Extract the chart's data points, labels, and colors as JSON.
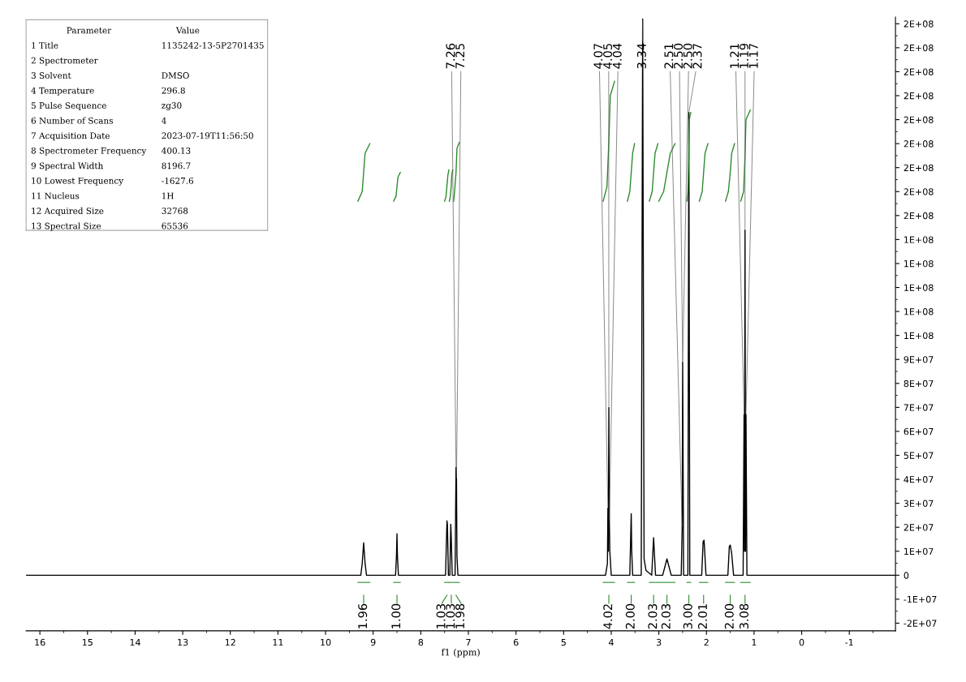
{
  "chart_data": {
    "type": "line",
    "xlabel": "f1 (ppm)",
    "xlim": [
      16.29,
      -1.97
    ],
    "xticks": [
      16,
      15,
      14,
      13,
      12,
      11,
      10,
      9,
      8,
      7,
      6,
      5,
      4,
      3,
      2,
      1,
      0,
      -1
    ],
    "ylim": [
      -23200000.0,
      232800000.0
    ],
    "yticks": [
      {
        "value": -20000000.0,
        "label": "-2E+07"
      },
      {
        "value": -10000000.0,
        "label": "-1E+07"
      },
      0,
      {
        "value": 10000000.0,
        "label": "1E+07"
      },
      {
        "value": 20000000.0,
        "label": "2E+07"
      },
      {
        "value": 30000000.0,
        "label": "3E+07"
      },
      {
        "value": 40000000.0,
        "label": "4E+07"
      },
      {
        "value": 50000000.0,
        "label": "5E+07"
      },
      {
        "value": 60000000.0,
        "label": "6E+07"
      },
      {
        "value": 70000000.0,
        "label": "7E+07"
      },
      {
        "value": 80000000.0,
        "label": "8E+07"
      },
      {
        "value": 90000000.0,
        "label": "9E+07"
      },
      {
        "value": 100000000.0,
        "label": "1E+08"
      },
      {
        "value": 110000000.0,
        "label": "1E+08"
      },
      {
        "value": 120000000.0,
        "label": "1E+08"
      },
      {
        "value": 130000000.0,
        "label": "1E+08"
      },
      {
        "value": 140000000.0,
        "label": "1E+08"
      },
      {
        "value": 150000000.0,
        "label": "2E+08"
      },
      {
        "value": 160000000.0,
        "label": "2E+08"
      },
      {
        "value": 170000000.0,
        "label": "2E+08"
      },
      {
        "value": 180000000.0,
        "label": "2E+08"
      },
      {
        "value": 190000000.0,
        "label": "2E+08"
      },
      {
        "value": 200000000.0,
        "label": "2E+08"
      },
      {
        "value": 210000000.0,
        "label": "2E+08"
      },
      {
        "value": 220000000.0,
        "label": "2E+08"
      },
      {
        "value": 230000000.0,
        "label": "2E+08"
      }
    ],
    "grid": false,
    "legend": "bottom",
    "series": [
      {
        "color": "#000000",
        "x": [
          16.29,
          9.26,
          9.23,
          9.2,
          9.17,
          9.14,
          8.53,
          8.51,
          8.5,
          8.49,
          8.47,
          7.48,
          7.45,
          7.44,
          7.42,
          7.39,
          7.37,
          7.36,
          7.34,
          7.28,
          7.26,
          7.25,
          7.24,
          7.22,
          4.12,
          4.08,
          4.07,
          4.06,
          4.05,
          4.04,
          4.03,
          4.0,
          3.61,
          3.58,
          3.57,
          3.55,
          3.37,
          3.34,
          3.31,
          3.27,
          3.15,
          3.11,
          3.07,
          2.92,
          2.83,
          2.74,
          2.53,
          2.51,
          2.5,
          2.48,
          2.39,
          2.37,
          2.35,
          2.1,
          2.07,
          2.05,
          2.01,
          1.55,
          1.52,
          1.5,
          1.47,
          1.43,
          1.23,
          1.21,
          1.2,
          1.19,
          1.18,
          1.17,
          1.15,
          -1.97
        ],
        "values": [
          0,
          0,
          5000000.0,
          13500000.0,
          5000000.0,
          0,
          0,
          8500000.0,
          17300000.0,
          8000000.0,
          0,
          0,
          22700000.0,
          21000000.0,
          0,
          0,
          21300000.0,
          16000000.0,
          0,
          0,
          45000000.0,
          40000000.0,
          8000000.0,
          0,
          0,
          5000000.0,
          28000000.0,
          10000000.0,
          70000000.0,
          23000000.0,
          10000000.0,
          0,
          0,
          25700000.0,
          10000000.0,
          0,
          0,
          232000000.0,
          6800000.0,
          2000000.0,
          0,
          15700000.0,
          0,
          0,
          6800000.0,
          0,
          0,
          20000000.0,
          89000000.0,
          0,
          0,
          193000000.0,
          0,
          0,
          14000000.0,
          14600000.0,
          0,
          0,
          12000000.0,
          12600000.0,
          9000000.0,
          0,
          0,
          67000000.0,
          10000000.0,
          144000000.0,
          10000000.0,
          67000000.0,
          0,
          0
        ]
      },
      {
        "name": "1.96",
        "color": "#2e8b2e",
        "x": [
          9.32,
          9.23,
          9.2,
          9.17,
          9.07
        ],
        "values": [
          156000000.0,
          160000000.0,
          168000000.0,
          176000000.0,
          180000000.0
        ]
      },
      {
        "name": "1.00",
        "color": "#2e8b2e",
        "x": [
          8.57,
          8.52,
          8.5,
          8.48,
          8.43
        ],
        "values": [
          156000000.0,
          158000000.0,
          162000000.0,
          166000000.0,
          168000000.0
        ]
      },
      {
        "name": "1.03",
        "color": "#2e8b2e",
        "x": [
          7.5,
          7.47,
          7.45,
          7.43,
          7.41
        ],
        "values": [
          156000000.0,
          158000000.0,
          162500000.0,
          167000000.0,
          169000000.0
        ]
      },
      {
        "name": "1.03",
        "color": "#2e8b2e",
        "x": [
          7.4,
          7.38,
          7.36,
          7.35,
          7.33
        ],
        "values": [
          156000000.0,
          158000000.0,
          162500000.0,
          167000000.0,
          169000000.0
        ]
      },
      {
        "name": "1.98",
        "color": "#2e8b2e",
        "x": [
          7.31,
          7.29,
          7.26,
          7.24,
          7.19
        ],
        "values": [
          156000000.0,
          160000000.0,
          168000000.0,
          178000000.0,
          180500000.0
        ]
      },
      {
        "name": "4.02",
        "color": "#2e8b2e",
        "x": [
          4.17,
          4.09,
          4.05,
          4.02,
          3.93
        ],
        "values": [
          156000000.0,
          162000000.0,
          181000000.0,
          200000000.0,
          206000000.0
        ]
      },
      {
        "name": "2.00",
        "color": "#2e8b2e",
        "x": [
          3.66,
          3.61,
          3.58,
          3.55,
          3.51
        ],
        "values": [
          156000000.0,
          160000000.0,
          168000000.0,
          176000000.0,
          180000000.0
        ]
      },
      {
        "name": "2.03",
        "color": "#2e8b2e",
        "x": [
          3.2,
          3.14,
          3.11,
          3.08,
          3.02
        ],
        "values": [
          156000000.0,
          160000000.0,
          168000000.0,
          176000000.0,
          180000000.0
        ]
      },
      {
        "name": "2.03",
        "color": "#2e8b2e",
        "x": [
          3.0,
          2.9,
          2.83,
          2.76,
          2.66
        ],
        "values": [
          156000000.0,
          160000000.0,
          168000000.0,
          176000000.0,
          180000000.0
        ]
      },
      {
        "name": "3.00",
        "color": "#2e8b2e",
        "x": [
          2.41,
          2.39,
          2.37,
          2.36,
          2.33
        ],
        "values": [
          156000000.0,
          160000000.0,
          175000000.0,
          190000000.0,
          193000000.0
        ]
      },
      {
        "name": "2.01",
        "color": "#2e8b2e",
        "x": [
          2.15,
          2.09,
          2.06,
          2.03,
          1.97
        ],
        "values": [
          156000000.0,
          160000000.0,
          168000000.0,
          176000000.0,
          180000000.0
        ]
      },
      {
        "name": "2.00",
        "color": "#2e8b2e",
        "x": [
          1.6,
          1.54,
          1.5,
          1.47,
          1.41
        ],
        "values": [
          156000000.0,
          160000000.0,
          168000000.0,
          176000000.0,
          180000000.0
        ]
      },
      {
        "name": "3.08",
        "color": "#2e8b2e",
        "x": [
          1.28,
          1.22,
          1.19,
          1.17,
          1.08
        ],
        "values": [
          156000000.0,
          160000000.0,
          175000000.0,
          190000000.0,
          194000000.0
        ]
      }
    ],
    "annotations": [
      {
        "text": "7.26",
        "x": 7.26,
        "y": 45000000.0
      },
      {
        "text": "7.25",
        "x": 7.25,
        "y": 40000000.0
      },
      {
        "text": "4.07",
        "x": 4.07,
        "y": 28000000.0
      },
      {
        "text": "4.05",
        "x": 4.05,
        "y": 70000000.0
      },
      {
        "text": "4.04",
        "x": 4.04,
        "y": 23000000.0
      },
      {
        "text": "3.34",
        "x": 3.34,
        "y": 232000000.0
      },
      {
        "text": "2.51",
        "x": 2.51,
        "y": 20000000.0
      },
      {
        "text": "2.50",
        "x": 2.5,
        "y": 89000000.0
      },
      {
        "text": "2.50",
        "x": 2.5,
        "y": 89000000.0
      },
      {
        "text": "2.37",
        "x": 2.37,
        "y": 193000000.0
      },
      {
        "text": "1.21",
        "x": 1.21,
        "y": 67000000.0
      },
      {
        "text": "1.19",
        "x": 1.19,
        "y": 144000000.0
      },
      {
        "text": "1.17",
        "x": 1.17,
        "y": 67000000.0
      },
      "Parameter\tValue",
      "1 Title\t1135242-13-5P2701435",
      "2 Spectrometer",
      "3 Solvent\tDMSO",
      "4 Temperature\t296.8",
      "5 Pulse Sequence\tzg30",
      "6 Number of Scans\t4",
      "7 Acquisition Date\t2023-07-19T11:56:50",
      "8 Spectrometer Frequency\t400.13",
      "9 Spectral Width\t8196.7",
      "10 Lowest Frequency\t-1627.6",
      "11 Nucleus\t1H",
      "12 Acquired Size\t32768",
      "13 Spectral Size\t65536"
    ]
  }
}
